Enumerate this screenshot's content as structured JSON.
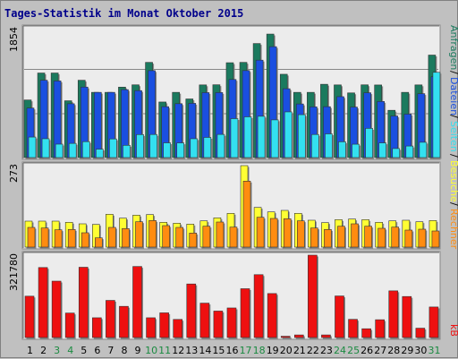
{
  "title": "Tages-Statistik im Monat Oktober 2015",
  "panels": {
    "top": {
      "max_label": "1854",
      "legend": [
        "Anfragen",
        "Dateien",
        "Seiten"
      ]
    },
    "middle": {
      "max_label": "273",
      "legend": [
        "Besuche",
        "Rechner"
      ]
    },
    "bottom": {
      "max_label": "321780",
      "legend": [
        "kB"
      ]
    }
  },
  "colors": {
    "anfragen": "#1b7a5e",
    "dateien": "#1a4fe0",
    "seiten": "#33e0f0",
    "besuche": "#ffff33",
    "rechner": "#ff8c10",
    "kb": "#ee1010",
    "panel_bg": "#ececec",
    "background": "#c0c0c0",
    "weekend_label": "#1a8a40",
    "title": "#00008b"
  },
  "chart_data": {
    "type": "bar",
    "title": "Tages-Statistik im Monat Oktober 2015",
    "categories": [
      "1",
      "2",
      "3",
      "4",
      "5",
      "6",
      "7",
      "8",
      "9",
      "10",
      "11",
      "12",
      "13",
      "14",
      "15",
      "16",
      "17",
      "18",
      "19",
      "20",
      "21",
      "22",
      "23",
      "24",
      "25",
      "26",
      "27",
      "28",
      "29",
      "30",
      "31"
    ],
    "weekend_days": [
      "3",
      "4",
      "10",
      "11",
      "17",
      "18",
      "24",
      "25",
      "31"
    ],
    "panels": [
      {
        "name": "top",
        "ylim": [
          0,
          1854
        ],
        "series": [
          {
            "name": "Anfragen",
            "values": [
              828,
              1216,
              1216,
              817,
              1112,
              938,
              938,
              1013,
              1046,
              1369,
              799,
              938,
              843,
              1045,
              1047,
              1364,
              1369,
              1640,
              1776,
              1198,
              938,
              938,
              1054,
              1045,
              930,
              1046,
              1044,
              680,
              938,
              1045,
              1474
            ]
          },
          {
            "name": "Dateien",
            "values": [
              712,
              1112,
              1102,
              774,
              1014,
              938,
              938,
              977,
              963,
              1250,
              732,
              775,
              780,
              934,
              935,
              1123,
              1251,
              1401,
              1595,
              990,
              771,
              729,
              732,
              876,
              726,
              932,
              807,
              598,
              625,
              919,
              1162
            ]
          },
          {
            "name": "Seiten",
            "values": [
              295,
              271,
              193,
              204,
              229,
              121,
              268,
              176,
              331,
              332,
              212,
              211,
              271,
              290,
              333,
              560,
              586,
              594,
              542,
              657,
              617,
              332,
              341,
              227,
              192,
              420,
              211,
              130,
              166,
              220,
              1226
            ]
          }
        ]
      },
      {
        "name": "middle",
        "ylim": [
          0,
          273
        ],
        "series": [
          {
            "name": "Besuche",
            "values": [
              87,
              87,
              87,
              83,
              78,
              76,
              110,
              97,
              107,
              109,
              83,
              80,
              77,
              88,
              98,
              113,
              273,
              133,
              118,
              123,
              113,
              90,
              82,
              92,
              94,
              92,
              83,
              88,
              90,
              85,
              89
            ]
          },
          {
            "name": "Rechner",
            "values": [
              66,
              64,
              58,
              59,
              48,
              31,
              66,
              62,
              85,
              89,
              72,
              66,
              47,
              70,
              84,
              67,
              221,
              100,
              96,
              95,
              88,
              64,
              59,
              70,
              78,
              70,
              63,
              67,
              57,
              60,
              54
            ]
          }
        ]
      },
      {
        "name": "bottom",
        "ylim": [
          0,
          321780
        ],
        "series": [
          {
            "name": "kB",
            "values": [
              161560,
              273500,
              220260,
              95610,
              274520,
              77180,
              145040,
              121790,
              277500,
              77180,
              96340,
              70760,
              209200,
              134380,
              103350,
              115510,
              190680,
              245600,
              171800,
              5000,
              10090,
              321780,
              10140,
              162340,
              71000,
              34270,
              69500,
              182330,
              160210,
              36510,
              119240
            ]
          }
        ]
      }
    ]
  }
}
